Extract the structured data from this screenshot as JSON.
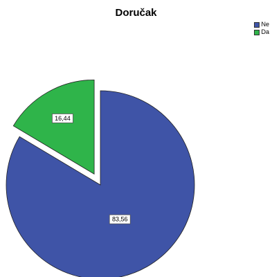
{
  "chart_data": {
    "type": "pie",
    "title": "Doručak",
    "slices": [
      {
        "name": "Ne",
        "value": 83.56,
        "label": "83,56",
        "color": "#3f54a7"
      },
      {
        "name": "Da",
        "value": 16.44,
        "label": "16,44",
        "color": "#2fb44a"
      }
    ],
    "exploded_slice": "Da",
    "legend_placement": "top-right"
  }
}
